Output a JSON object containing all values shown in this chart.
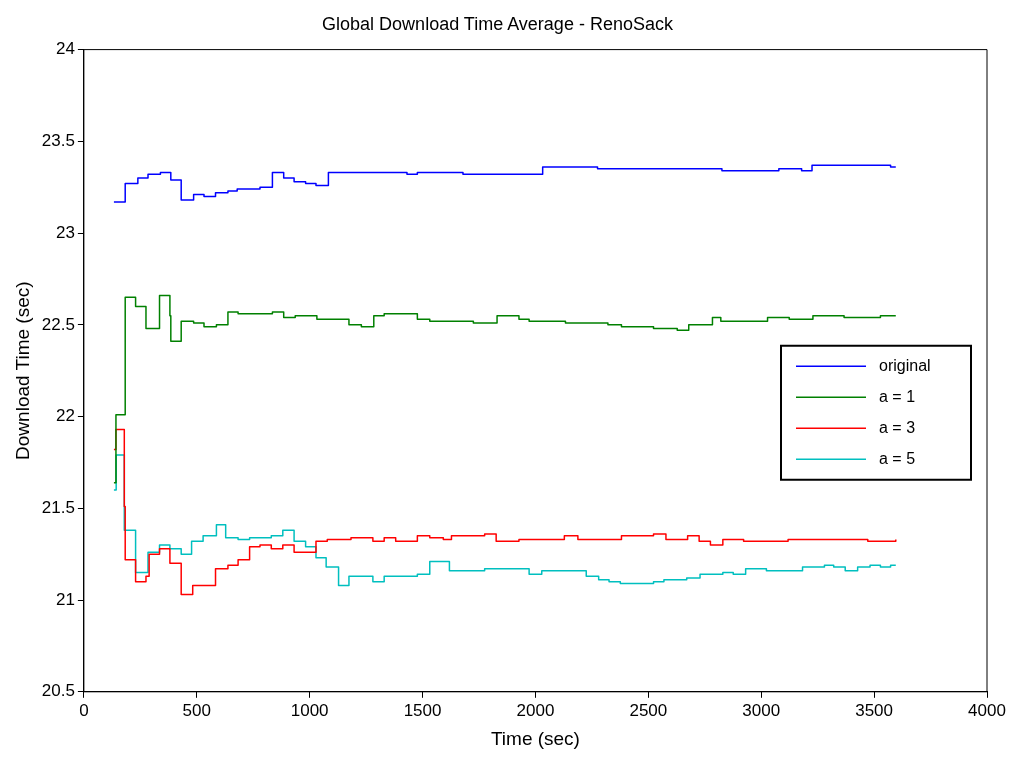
{
  "chart_data": {
    "type": "step",
    "title": "Global Download Time Average - RenoSack",
    "xlabel": "Time (sec)",
    "ylabel": "Download Time (sec)",
    "xlim": [
      0,
      4000
    ],
    "ylim": [
      20.5,
      24
    ],
    "xticks": [
      0,
      500,
      1000,
      1500,
      2000,
      2500,
      3000,
      3500,
      4000
    ],
    "yticks": [
      20.5,
      21,
      21.5,
      22,
      22.5,
      23,
      23.5,
      24
    ],
    "legend": "right",
    "series": [
      {
        "name": "original",
        "color": "#0000ff",
        "x": [
          133,
          183,
          239,
          284,
          339,
          385,
          431,
          486,
          532,
          583,
          638,
          679,
          780,
          835,
          885,
          931,
          982,
          1028,
          1083,
          1431,
          1477,
          1679,
          2032,
          2275,
          2826,
          3078,
          3179,
          3225,
          3573,
          3596
        ],
        "values": [
          23.17,
          23.27,
          23.3,
          23.32,
          23.33,
          23.29,
          23.18,
          23.21,
          23.2,
          23.22,
          23.23,
          23.24,
          23.25,
          23.33,
          23.3,
          23.28,
          23.27,
          23.26,
          23.33,
          23.32,
          23.33,
          23.32,
          23.36,
          23.35,
          23.34,
          23.35,
          23.34,
          23.37,
          23.36,
          23.36
        ]
      },
      {
        "name": "a = 1",
        "color": "#008000",
        "x": [
          133,
          142,
          183,
          229,
          275,
          335,
          381,
          385,
          431,
          486,
          532,
          587,
          638,
          683,
          835,
          885,
          936,
          1032,
          1174,
          1229,
          1284,
          1330,
          1477,
          1532,
          1725,
          1830,
          1927,
          1972,
          2133,
          2321,
          2381,
          2523,
          2628,
          2679,
          2784,
          2821,
          3028,
          3124,
          3229,
          3367,
          3528,
          3596
        ],
        "values": [
          21.64,
          22.01,
          22.65,
          22.6,
          22.48,
          22.66,
          22.55,
          22.41,
          22.52,
          22.51,
          22.49,
          22.5,
          22.57,
          22.56,
          22.57,
          22.54,
          22.55,
          22.53,
          22.5,
          22.49,
          22.55,
          22.56,
          22.53,
          22.52,
          22.51,
          22.55,
          22.53,
          22.52,
          22.51,
          22.5,
          22.49,
          22.48,
          22.47,
          22.5,
          22.54,
          22.52,
          22.54,
          22.53,
          22.55,
          22.54,
          22.55,
          22.55
        ]
      },
      {
        "name": "a = 3",
        "color": "#ff0000",
        "x": [
          133,
          142,
          179,
          183,
          229,
          275,
          289,
          335,
          381,
          431,
          482,
          583,
          638,
          683,
          734,
          780,
          830,
          881,
          931,
          1028,
          1078,
          1183,
          1280,
          1330,
          1381,
          1477,
          1532,
          1592,
          1628,
          1775,
          1826,
          1927,
          2128,
          2188,
          2381,
          2523,
          2578,
          2674,
          2725,
          2775,
          2830,
          2922,
          3119,
          3472,
          3596
        ],
        "values": [
          21.82,
          21.93,
          21.51,
          21.22,
          21.1,
          21.13,
          21.25,
          21.28,
          21.2,
          21.03,
          21.08,
          21.17,
          21.19,
          21.22,
          21.29,
          21.3,
          21.28,
          21.3,
          21.26,
          21.32,
          21.33,
          21.34,
          21.32,
          21.34,
          21.32,
          21.35,
          21.34,
          21.33,
          21.35,
          21.36,
          21.32,
          21.33,
          21.35,
          21.33,
          21.35,
          21.36,
          21.33,
          21.35,
          21.32,
          21.3,
          21.33,
          21.32,
          21.33,
          21.32,
          21.33
        ]
      },
      {
        "name": "a = 5",
        "color": "#00bfbf",
        "x": [
          133,
          143,
          179,
          229,
          284,
          335,
          381,
          431,
          477,
          528,
          587,
          628,
          683,
          734,
          830,
          881,
          931,
          982,
          1028,
          1073,
          1128,
          1174,
          1280,
          1330,
          1477,
          1532,
          1619,
          1775,
          1972,
          2028,
          2225,
          2280,
          2326,
          2376,
          2523,
          2569,
          2670,
          2729,
          2830,
          2876,
          2931,
          3023,
          3183,
          3280,
          3321,
          3372,
          3427,
          3482,
          3528,
          3573,
          3596
        ],
        "values": [
          21.6,
          21.79,
          21.38,
          21.15,
          21.26,
          21.3,
          21.28,
          21.25,
          21.32,
          21.35,
          21.41,
          21.34,
          21.33,
          21.34,
          21.35,
          21.38,
          21.32,
          21.29,
          21.23,
          21.18,
          21.08,
          21.13,
          21.1,
          21.13,
          21.14,
          21.21,
          21.16,
          21.17,
          21.14,
          21.16,
          21.13,
          21.11,
          21.1,
          21.09,
          21.1,
          21.11,
          21.12,
          21.14,
          21.15,
          21.14,
          21.17,
          21.16,
          21.18,
          21.19,
          21.18,
          21.16,
          21.18,
          21.19,
          21.18,
          21.19,
          21.19
        ]
      }
    ]
  }
}
